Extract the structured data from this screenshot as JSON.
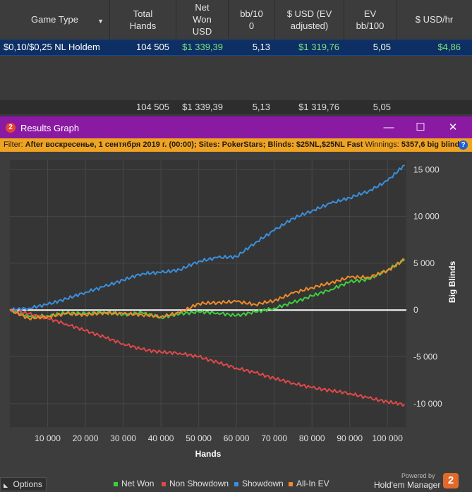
{
  "table": {
    "columns": [
      {
        "label": "Game Type",
        "sortable": true
      },
      {
        "label": "Total\nHands"
      },
      {
        "label": "Net\nWon\nUSD"
      },
      {
        "label": "bb/10\n0"
      },
      {
        "label": "$ USD (EV\nadjusted)"
      },
      {
        "label": "EV\nbb/100"
      },
      {
        "label": "$ USD/hr"
      }
    ],
    "row": {
      "game_type": "$0,10/$0,25 NL Holdem",
      "total_hands": "104 505",
      "net_won": "$1 339,39",
      "bb100": "5,13",
      "usd_ev": "$1 319,76",
      "ev_bb100": "5,05",
      "usd_hr": "$4,86"
    },
    "summary": {
      "total_hands": "104 505",
      "net_won": "$1 339,39",
      "bb100": "5,13",
      "usd_ev": "$1 319,76",
      "ev_bb100": "5,05"
    }
  },
  "window": {
    "badge": "2",
    "title": "Results Graph",
    "minimize": "—",
    "maximize": "☐",
    "close": "✕"
  },
  "filter": {
    "label": "Filter:",
    "text": "After воскресенье, 1 сентября 2019 г. (00:00); Sites: PokerStars; Blinds: $25NL,$25NL Fast",
    "winnings_label": "Winnings:",
    "winnings_value": "5357,6 big blinds",
    "help": "?"
  },
  "chart_data": {
    "type": "line",
    "xlabel": "Hands",
    "ylabel": "Big Blinds",
    "xlim": [
      0,
      105000
    ],
    "ylim": [
      -12500,
      16000
    ],
    "x_ticks": [
      10000,
      20000,
      30000,
      40000,
      50000,
      60000,
      70000,
      80000,
      90000,
      100000
    ],
    "x_tick_labels": [
      "10 000",
      "20 000",
      "30 000",
      "40 000",
      "50 000",
      "60 000",
      "70 000",
      "80 000",
      "90 000",
      "100 000"
    ],
    "y_ticks": [
      15000,
      10000,
      5000,
      0,
      -5000,
      -10000
    ],
    "y_tick_labels": [
      "15 000",
      "10 000",
      "5 000",
      "0",
      "-5 000",
      "-10 000"
    ],
    "legend_position": "bottom",
    "series": [
      {
        "name": "Net Won",
        "color": "#3ecf3e",
        "x": [
          0,
          5000,
          10000,
          15000,
          20000,
          25000,
          30000,
          35000,
          40000,
          45000,
          50000,
          55000,
          60000,
          65000,
          70000,
          75000,
          80000,
          85000,
          90000,
          95000,
          100000,
          104505
        ],
        "y": [
          0,
          -700,
          -600,
          -300,
          -400,
          -200,
          -500,
          -300,
          -800,
          -400,
          -200,
          -300,
          -600,
          -200,
          200,
          800,
          1500,
          2200,
          3000,
          3300,
          4300,
          5360
        ]
      },
      {
        "name": "Non Showdown",
        "color": "#e04848",
        "x": [
          0,
          5000,
          10000,
          15000,
          20000,
          25000,
          30000,
          35000,
          40000,
          45000,
          50000,
          55000,
          60000,
          65000,
          70000,
          75000,
          80000,
          85000,
          90000,
          95000,
          100000,
          104505
        ],
        "y": [
          0,
          -400,
          -900,
          -1500,
          -2200,
          -2900,
          -3600,
          -4200,
          -4500,
          -4600,
          -5000,
          -5600,
          -6200,
          -6700,
          -7300,
          -7800,
          -8300,
          -8600,
          -8900,
          -9400,
          -9800,
          -10100
        ]
      },
      {
        "name": "Showdown",
        "color": "#3a8fdd",
        "x": [
          0,
          5000,
          10000,
          15000,
          20000,
          25000,
          30000,
          35000,
          40000,
          45000,
          50000,
          55000,
          60000,
          65000,
          70000,
          75000,
          80000,
          85000,
          90000,
          95000,
          100000,
          104505
        ],
        "y": [
          0,
          200,
          600,
          1200,
          1900,
          2500,
          3200,
          3900,
          4000,
          4300,
          5200,
          5600,
          5700,
          7200,
          8500,
          9800,
          10600,
          11400,
          12000,
          12700,
          13800,
          15500
        ]
      },
      {
        "name": "All-In EV",
        "color": "#f08a2a",
        "x": [
          0,
          5000,
          10000,
          15000,
          20000,
          25000,
          30000,
          35000,
          40000,
          45000,
          50000,
          55000,
          60000,
          65000,
          70000,
          75000,
          80000,
          85000,
          90000,
          95000,
          100000,
          104505
        ],
        "y": [
          0,
          -900,
          -700,
          -400,
          -500,
          -300,
          -400,
          -500,
          -700,
          -300,
          700,
          800,
          900,
          600,
          1000,
          1800,
          2400,
          2900,
          3500,
          3500,
          4200,
          5400
        ]
      }
    ]
  },
  "footer": {
    "options_label": "Options",
    "options_icon": "triangle-icon",
    "powered_by": "Powered by",
    "brand": "Hold'em Manager",
    "brand_badge": "2"
  }
}
